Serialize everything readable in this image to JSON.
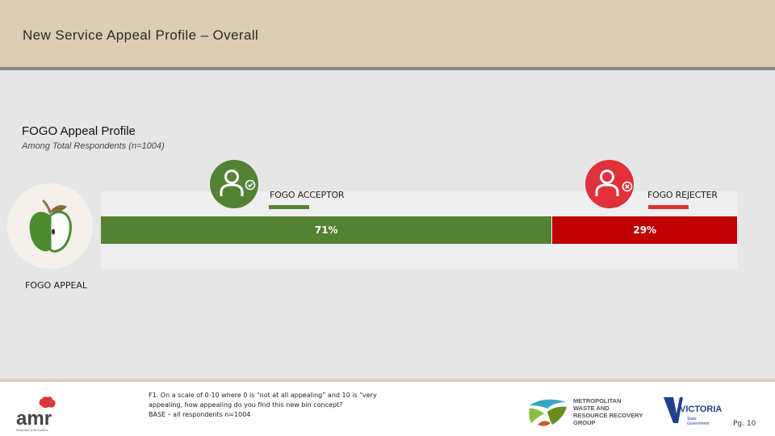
{
  "header": {
    "title": "New Service Appeal Profile – Overall"
  },
  "section": {
    "title": "FOGO Appeal Profile",
    "subtitle": "Among Total Respondents (n=1004)"
  },
  "chart_data": {
    "type": "bar",
    "orientation": "horizontal-stacked",
    "title": "FOGO Appeal Profile",
    "subtitle": "Among Total Respondents (n=1004)",
    "categories": [
      "FOGO APPEAL"
    ],
    "series": [
      {
        "name": "FOGO ACCEPTOR",
        "values": [
          71
        ],
        "label": "71%",
        "color": "#548235"
      },
      {
        "name": "FOGO REJECTER",
        "values": [
          29
        ],
        "label": "29%",
        "color": "#c00000"
      }
    ],
    "xlim": [
      0,
      100
    ],
    "legend_position": "top",
    "grid": false
  },
  "legend": {
    "acceptor": {
      "label": "FOGO ACCEPTOR",
      "color": "#548235",
      "icon": "person-check-icon"
    },
    "rejecter": {
      "label": "FOGO REJECTER",
      "color": "#e0303a",
      "icon": "person-cross-icon"
    }
  },
  "category": {
    "label": "FOGO APPEAL",
    "icon": "apple-icon"
  },
  "footnote": {
    "line1": "F1. On a scale of 0-10 where 0 is “not at all appealing” and 10 is “very",
    "line2": "appealing, how appealing do you find this new bin concept?",
    "line3": "BASE – all respondents n=1004"
  },
  "logos": {
    "amr": {
      "name": "amr",
      "tagline": "Research that matters"
    },
    "mwrrg": {
      "line1": "METROPOLITAN",
      "line2": "WASTE AND",
      "line3": "RESOURCE RECOVERY",
      "line4": "GROUP"
    },
    "victoria": {
      "name": "VICTORIA",
      "line1": "State",
      "line2": "Government"
    }
  },
  "page": {
    "number": "Pg. 10"
  }
}
